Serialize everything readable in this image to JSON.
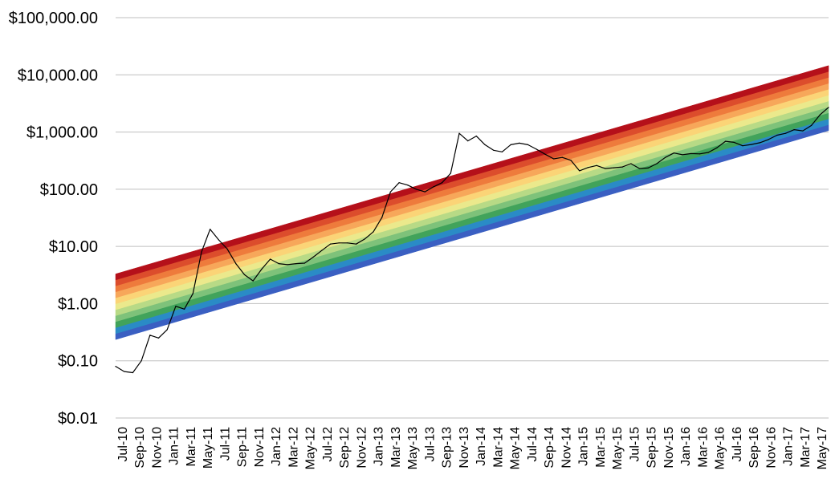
{
  "chart_data": {
    "type": "line",
    "title": "",
    "xlabel": "",
    "ylabel": "",
    "y_scale": "log",
    "ylim": [
      0.01,
      100000
    ],
    "y_tick_labels": [
      "$100,000.00",
      "$10,000.00",
      "$1,000.00",
      "$100.00",
      "$10.00",
      "$1.00",
      "$0.10",
      "$0.01"
    ],
    "y_tick_values": [
      100000,
      10000,
      1000,
      100,
      10,
      1,
      0.1,
      0.01
    ],
    "x_range": [
      "2010-07",
      "2017-06"
    ],
    "x_tick_labels": [
      "Jul-10",
      "Sep-10",
      "Nov-10",
      "Jan-11",
      "Mar-11",
      "May-11",
      "Jul-11",
      "Sep-11",
      "Nov-11",
      "Jan-12",
      "Mar-12",
      "May-12",
      "Jul-12",
      "Sep-12",
      "Nov-12",
      "Jan-13",
      "Mar-13",
      "May-13",
      "Jul-13",
      "Sep-13",
      "Nov-13",
      "Jan-14",
      "Mar-14",
      "May-14",
      "Jul-14",
      "Sep-14",
      "Nov-14",
      "Jan-15",
      "Mar-15",
      "May-15",
      "Jul-15",
      "Sep-15",
      "Nov-15",
      "Jan-16",
      "Mar-16",
      "May-16",
      "Jul-16",
      "Sep-16",
      "Nov-16",
      "Jan-17",
      "Mar-17",
      "May-17"
    ],
    "grid": "horizontal",
    "rainbow_bands": {
      "colors": [
        "#3A5FC2",
        "#2A8BC6",
        "#41A35B",
        "#7EC27A",
        "#B8DA86",
        "#EBE98C",
        "#FBD477",
        "#F7A75A",
        "#EE7B3C",
        "#DC4D2C",
        "#B5101A"
      ],
      "lower_bound": [
        {
          "x": "2010-07",
          "y": 0.235
        },
        {
          "x": "2017-06",
          "y": 1060
        }
      ],
      "upper_bound": [
        {
          "x": "2010-07",
          "y": 3.3
        },
        {
          "x": "2017-06",
          "y": 14500
        }
      ]
    },
    "series": [
      {
        "color": "#000000",
        "points": [
          {
            "x": "2010-07",
            "y": 0.08
          },
          {
            "x": "2010-08",
            "y": 0.065
          },
          {
            "x": "2010-09",
            "y": 0.062
          },
          {
            "x": "2010-10",
            "y": 0.1
          },
          {
            "x": "2010-11",
            "y": 0.28
          },
          {
            "x": "2010-12",
            "y": 0.25
          },
          {
            "x": "2011-01",
            "y": 0.35
          },
          {
            "x": "2011-02",
            "y": 0.9
          },
          {
            "x": "2011-03",
            "y": 0.8
          },
          {
            "x": "2011-04",
            "y": 1.5
          },
          {
            "x": "2011-05",
            "y": 8
          },
          {
            "x": "2011-06",
            "y": 20
          },
          {
            "x": "2011-07",
            "y": 13
          },
          {
            "x": "2011-08",
            "y": 9
          },
          {
            "x": "2011-09",
            "y": 5
          },
          {
            "x": "2011-10",
            "y": 3.2
          },
          {
            "x": "2011-11",
            "y": 2.5
          },
          {
            "x": "2011-12",
            "y": 4
          },
          {
            "x": "2012-01",
            "y": 6
          },
          {
            "x": "2012-02",
            "y": 5
          },
          {
            "x": "2012-03",
            "y": 4.8
          },
          {
            "x": "2012-04",
            "y": 5
          },
          {
            "x": "2012-05",
            "y": 5.1
          },
          {
            "x": "2012-06",
            "y": 6.5
          },
          {
            "x": "2012-07",
            "y": 8.5
          },
          {
            "x": "2012-08",
            "y": 11
          },
          {
            "x": "2012-09",
            "y": 11.5
          },
          {
            "x": "2012-10",
            "y": 11.5
          },
          {
            "x": "2012-11",
            "y": 11
          },
          {
            "x": "2012-12",
            "y": 13.5
          },
          {
            "x": "2013-01",
            "y": 18
          },
          {
            "x": "2013-02",
            "y": 32
          },
          {
            "x": "2013-03",
            "y": 90
          },
          {
            "x": "2013-04",
            "y": 130
          },
          {
            "x": "2013-05",
            "y": 118
          },
          {
            "x": "2013-06",
            "y": 100
          },
          {
            "x": "2013-07",
            "y": 90
          },
          {
            "x": "2013-08",
            "y": 110
          },
          {
            "x": "2013-09",
            "y": 130
          },
          {
            "x": "2013-10",
            "y": 190
          },
          {
            "x": "2013-11",
            "y": 950
          },
          {
            "x": "2013-12",
            "y": 700
          },
          {
            "x": "2014-01",
            "y": 850
          },
          {
            "x": "2014-02",
            "y": 600
          },
          {
            "x": "2014-03",
            "y": 480
          },
          {
            "x": "2014-04",
            "y": 450
          },
          {
            "x": "2014-05",
            "y": 600
          },
          {
            "x": "2014-06",
            "y": 640
          },
          {
            "x": "2014-07",
            "y": 600
          },
          {
            "x": "2014-08",
            "y": 500
          },
          {
            "x": "2014-09",
            "y": 410
          },
          {
            "x": "2014-10",
            "y": 340
          },
          {
            "x": "2014-11",
            "y": 360
          },
          {
            "x": "2014-12",
            "y": 320
          },
          {
            "x": "2015-01",
            "y": 210
          },
          {
            "x": "2015-02",
            "y": 240
          },
          {
            "x": "2015-03",
            "y": 260
          },
          {
            "x": "2015-04",
            "y": 230
          },
          {
            "x": "2015-05",
            "y": 237
          },
          {
            "x": "2015-06",
            "y": 245
          },
          {
            "x": "2015-07",
            "y": 280
          },
          {
            "x": "2015-08",
            "y": 230
          },
          {
            "x": "2015-09",
            "y": 235
          },
          {
            "x": "2015-10",
            "y": 280
          },
          {
            "x": "2015-11",
            "y": 360
          },
          {
            "x": "2015-12",
            "y": 430
          },
          {
            "x": "2016-01",
            "y": 400
          },
          {
            "x": "2016-02",
            "y": 420
          },
          {
            "x": "2016-03",
            "y": 415
          },
          {
            "x": "2016-04",
            "y": 440
          },
          {
            "x": "2016-05",
            "y": 530
          },
          {
            "x": "2016-06",
            "y": 690
          },
          {
            "x": "2016-07",
            "y": 660
          },
          {
            "x": "2016-08",
            "y": 575
          },
          {
            "x": "2016-09",
            "y": 605
          },
          {
            "x": "2016-10",
            "y": 650
          },
          {
            "x": "2016-11",
            "y": 740
          },
          {
            "x": "2016-12",
            "y": 880
          },
          {
            "x": "2017-01",
            "y": 950
          },
          {
            "x": "2017-02",
            "y": 1100
          },
          {
            "x": "2017-03",
            "y": 1050
          },
          {
            "x": "2017-04",
            "y": 1300
          },
          {
            "x": "2017-05",
            "y": 2000
          },
          {
            "x": "2017-06",
            "y": 2700
          }
        ]
      }
    ]
  }
}
